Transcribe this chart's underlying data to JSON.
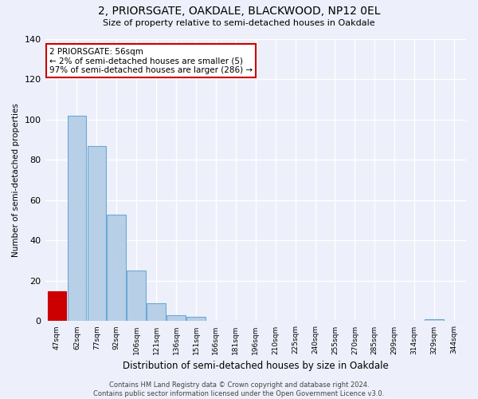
{
  "title": "2, PRIORSGATE, OAKDALE, BLACKWOOD, NP12 0EL",
  "subtitle": "Size of property relative to semi-detached houses in Oakdale",
  "xlabel": "Distribution of semi-detached houses by size in Oakdale",
  "ylabel": "Number of semi-detached properties",
  "categories": [
    "47sqm",
    "62sqm",
    "77sqm",
    "92sqm",
    "106sqm",
    "121sqm",
    "136sqm",
    "151sqm",
    "166sqm",
    "181sqm",
    "196sqm",
    "210sqm",
    "225sqm",
    "240sqm",
    "255sqm",
    "270sqm",
    "285sqm",
    "299sqm",
    "314sqm",
    "329sqm",
    "344sqm"
  ],
  "values": [
    15,
    102,
    87,
    53,
    25,
    9,
    3,
    2,
    0,
    0,
    0,
    0,
    0,
    0,
    0,
    0,
    0,
    0,
    0,
    1,
    0
  ],
  "bar_color": "#b8cfe8",
  "bar_edge_color": "#6aaad4",
  "highlight_bar_index": 0,
  "highlight_color": "#cc0000",
  "highlight_edge_color": "#cc0000",
  "annotation_text": "2 PRIORSGATE: 56sqm\n← 2% of semi-detached houses are smaller (5)\n97% of semi-detached houses are larger (286) →",
  "annotation_box_color": "#ffffff",
  "annotation_box_edge_color": "#cc0000",
  "ylim": [
    0,
    140
  ],
  "yticks": [
    0,
    20,
    40,
    60,
    80,
    100,
    120,
    140
  ],
  "background_color": "#edf0fa",
  "grid_color": "#ffffff",
  "footer": "Contains HM Land Registry data © Crown copyright and database right 2024.\nContains public sector information licensed under the Open Government Licence v3.0."
}
